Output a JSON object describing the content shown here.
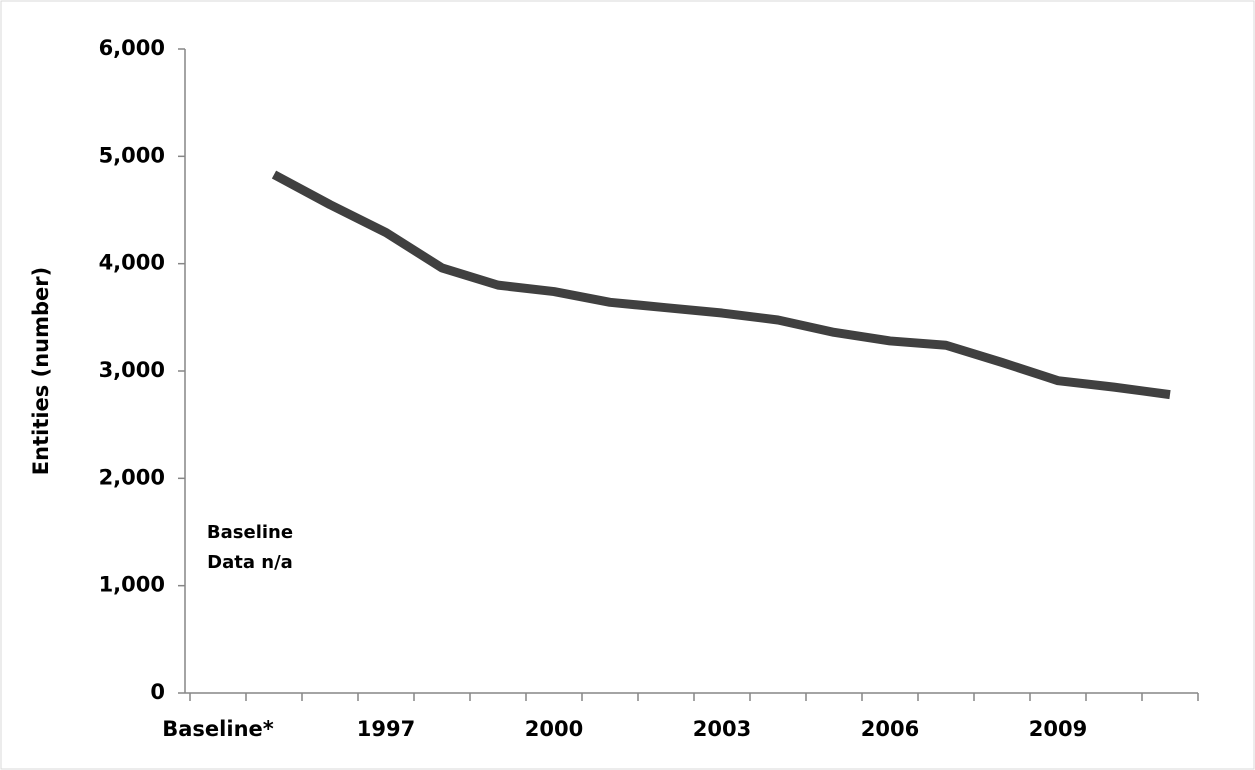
{
  "chart_data": {
    "type": "line",
    "y_label": "Entities (number)",
    "annotation": [
      "Baseline",
      "Data n/a"
    ],
    "categories": [
      "Baseline*",
      null,
      null,
      "1997",
      null,
      null,
      "2000",
      null,
      null,
      "2003",
      null,
      null,
      "2006",
      null,
      null,
      "2009",
      null,
      null
    ],
    "series": [
      {
        "color": "#404040",
        "values": [
          null,
          4830,
          4550,
          4290,
          3960,
          3800,
          3740,
          3640,
          3590,
          3540,
          3475,
          3360,
          3280,
          3240,
          3080,
          2910,
          2850,
          2780
        ]
      }
    ],
    "ylim": [
      0,
      6000
    ],
    "yticks": [
      0,
      {
        "value": 1000,
        "label": "1,000"
      },
      {
        "value": 2000,
        "label": "2,000"
      },
      {
        "value": 3000,
        "label": "3,000"
      },
      {
        "value": 4000,
        "label": "4,000"
      },
      {
        "value": 5000,
        "label": "5,000"
      },
      {
        "value": 6000,
        "label": "6,000"
      }
    ],
    "grid": false
  }
}
